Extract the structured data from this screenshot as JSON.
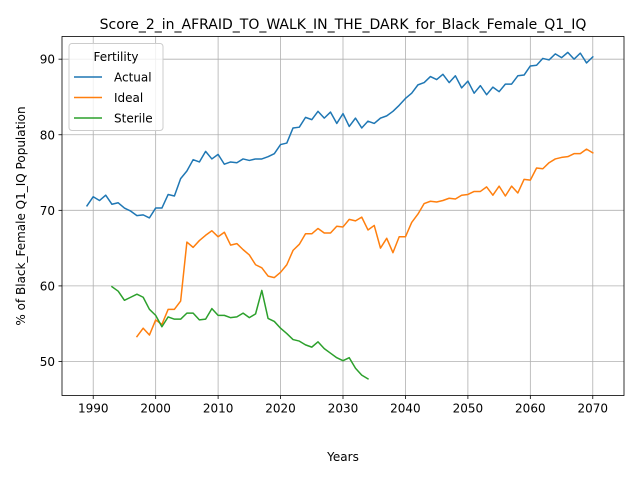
{
  "chart_data": {
    "type": "line",
    "title": "Score_2_in_AFRAID_TO_WALK_IN_THE_DARK_for_Black_Female_Q1_IQ",
    "xlabel": "Years",
    "ylabel": "% of Black_Female Q1_IQ Population",
    "xlim": [
      1985,
      2075
    ],
    "ylim": [
      45.5,
      93
    ],
    "xticks": [
      1990,
      2000,
      2010,
      2020,
      2030,
      2040,
      2050,
      2060,
      2070
    ],
    "yticks": [
      50,
      60,
      70,
      80,
      90
    ],
    "grid": true,
    "legend": {
      "title": "Fertility",
      "placement": "top-left"
    },
    "series": [
      {
        "name": "Actual",
        "color": "#1f77b4",
        "x": [
          1989,
          1990,
          1991,
          1992,
          1993,
          1994,
          1995,
          1996,
          1997,
          1998,
          1999,
          2000,
          2001,
          2002,
          2003,
          2004,
          2005,
          2006,
          2007,
          2008,
          2009,
          2010,
          2011,
          2012,
          2013,
          2014,
          2015,
          2016,
          2017,
          2018,
          2019,
          2020,
          2021,
          2022,
          2023,
          2024,
          2025,
          2026,
          2027,
          2028,
          2029,
          2030,
          2031,
          2032,
          2033,
          2034,
          2035,
          2036,
          2037,
          2038,
          2039,
          2040,
          2041,
          2042,
          2043,
          2044,
          2045,
          2046,
          2047,
          2048,
          2049,
          2050,
          2051,
          2052,
          2053,
          2054,
          2055,
          2056,
          2057,
          2058,
          2059,
          2060,
          2061,
          2062,
          2063,
          2064,
          2065,
          2066,
          2067,
          2068,
          2069,
          2070
        ],
        "values": [
          70.6,
          71.8,
          71.3,
          72.0,
          70.8,
          71.0,
          70.3,
          69.9,
          69.3,
          69.4,
          69.0,
          70.3,
          70.3,
          72.1,
          71.9,
          74.2,
          75.2,
          76.7,
          76.4,
          77.8,
          76.8,
          77.4,
          76.1,
          76.4,
          76.3,
          76.8,
          76.6,
          76.8,
          76.8,
          77.1,
          77.5,
          78.7,
          78.9,
          80.9,
          81.0,
          82.3,
          82.0,
          83.1,
          82.2,
          83.0,
          81.5,
          82.8,
          81.1,
          82.2,
          80.9,
          81.8,
          81.5,
          82.2,
          82.5,
          83.1,
          83.9,
          84.8,
          85.5,
          86.6,
          86.9,
          87.7,
          87.3,
          88.0,
          86.9,
          87.8,
          86.2,
          87.1,
          85.5,
          86.5,
          85.3,
          86.3,
          85.7,
          86.7,
          86.7,
          87.8,
          87.9,
          89.1,
          89.2,
          90.1,
          89.9,
          90.7,
          90.2,
          90.9,
          90.0,
          90.8,
          89.5,
          90.3
        ]
      },
      {
        "name": "Ideal",
        "color": "#ff7f0e",
        "x": [
          1997,
          1998,
          1999,
          2000,
          2001,
          2002,
          2003,
          2004,
          2005,
          2006,
          2007,
          2008,
          2009,
          2010,
          2011,
          2012,
          2013,
          2014,
          2015,
          2016,
          2017,
          2018,
          2019,
          2020,
          2021,
          2022,
          2023,
          2024,
          2025,
          2026,
          2027,
          2028,
          2029,
          2030,
          2031,
          2032,
          2033,
          2034,
          2035,
          2036,
          2037,
          2038,
          2039,
          2040,
          2041,
          2042,
          2043,
          2044,
          2045,
          2046,
          2047,
          2048,
          2049,
          2050,
          2051,
          2052,
          2053,
          2054,
          2055,
          2056,
          2057,
          2058,
          2059,
          2060,
          2061,
          2062,
          2063,
          2064,
          2065,
          2066,
          2067,
          2068,
          2069,
          2070
        ],
        "values": [
          53.3,
          54.4,
          53.5,
          55.5,
          54.9,
          56.9,
          56.9,
          58.0,
          65.8,
          65.1,
          66.0,
          66.7,
          67.3,
          66.5,
          67.1,
          65.4,
          65.6,
          64.8,
          64.1,
          62.8,
          62.4,
          61.3,
          61.1,
          61.8,
          62.8,
          64.7,
          65.5,
          66.9,
          66.9,
          67.6,
          67.0,
          67.0,
          67.9,
          67.8,
          68.8,
          68.6,
          69.1,
          67.4,
          68.0,
          65.0,
          66.3,
          64.4,
          66.5,
          66.5,
          68.4,
          69.5,
          70.9,
          71.2,
          71.1,
          71.3,
          71.6,
          71.5,
          72.0,
          72.1,
          72.5,
          72.5,
          73.1,
          72.0,
          73.2,
          71.9,
          73.2,
          72.3,
          74.1,
          74.0,
          75.6,
          75.5,
          76.3,
          76.8,
          77.0,
          77.1,
          77.5,
          77.5,
          78.1,
          77.6
        ]
      },
      {
        "name": "Sterile",
        "color": "#2ca02c",
        "x": [
          1993,
          1994,
          1995,
          1996,
          1997,
          1998,
          1999,
          2000,
          2001,
          2002,
          2003,
          2004,
          2005,
          2006,
          2007,
          2008,
          2009,
          2010,
          2011,
          2012,
          2013,
          2014,
          2015,
          2016,
          2017,
          2018,
          2019,
          2020,
          2021,
          2022,
          2023,
          2024,
          2025,
          2026,
          2027,
          2028,
          2029,
          2030,
          2031,
          2032,
          2033,
          2034
        ],
        "values": [
          59.9,
          59.3,
          58.1,
          58.5,
          58.9,
          58.5,
          56.9,
          56.1,
          54.6,
          55.9,
          55.6,
          55.6,
          56.4,
          56.4,
          55.5,
          55.6,
          57.0,
          56.1,
          56.1,
          55.8,
          55.9,
          56.4,
          55.8,
          56.3,
          59.4,
          55.7,
          55.3,
          54.4,
          53.7,
          52.9,
          52.7,
          52.2,
          51.9,
          52.6,
          51.7,
          51.1,
          50.5,
          50.1,
          50.5,
          49.1,
          48.2,
          47.7
        ]
      }
    ]
  }
}
